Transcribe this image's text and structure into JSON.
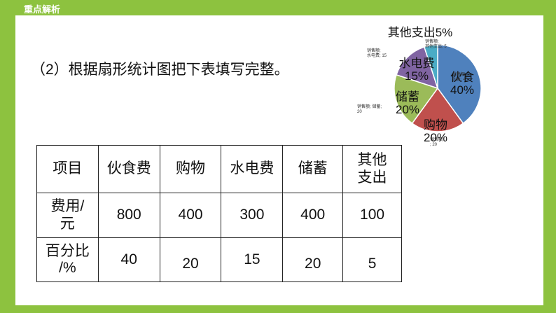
{
  "header": {
    "title": "重点解析"
  },
  "question": {
    "text": "（2）根据扇形统计图把下表填写完整。"
  },
  "chart_data": {
    "type": "pie",
    "slices": [
      {
        "name": "伙食",
        "label": "伙食\n40%",
        "value": 40,
        "color": "#4f81bd"
      },
      {
        "name": "购物",
        "label": "购物\n20%",
        "value": 20,
        "color": "#c0504d"
      },
      {
        "name": "储蓄",
        "label": "储蓄\n20%",
        "value": 20,
        "color": "#9bbb59"
      },
      {
        "name": "水电费",
        "label": "水电费\n15%",
        "value": 15,
        "color": "#8064a2"
      },
      {
        "name": "其他支出",
        "label": "其他支出5%",
        "value": 5,
        "color": "#4bacc6"
      }
    ],
    "small_labels": {
      "top": "销售额;\n其他支出; 5",
      "left_top": "销售额;\n水电费; 15",
      "left_mid": "销售额; 储蓄;\n20",
      "bottom": "销售额;\n; 20",
      "inner": "销售额;\n伙食; 40"
    }
  },
  "table": {
    "rows": [
      [
        "项目",
        "伙食费",
        "购物",
        "水电费",
        "储蓄",
        "其他\n支出"
      ],
      [
        "费用/\n元",
        "800",
        "400",
        "300",
        "400",
        "100"
      ],
      [
        "百分比\n/%",
        "40",
        "20",
        "15",
        "20",
        "5"
      ]
    ]
  },
  "colors": {
    "frame": "#8dc23f",
    "answer": "#e01010"
  }
}
